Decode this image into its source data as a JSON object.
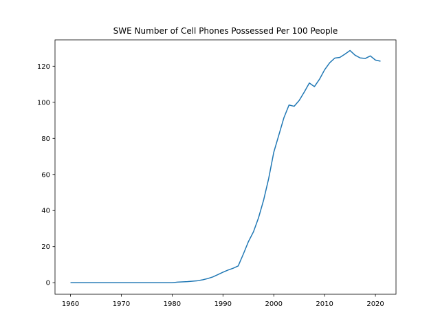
{
  "chart_data": {
    "type": "line",
    "title": "SWE Number of Cell Phones Possessed Per 100 People",
    "xlabel": "",
    "ylabel": "",
    "xlim": [
      1956.95,
      2024.05
    ],
    "ylim": [
      -6.4,
      134.6
    ],
    "xticks": [
      1960,
      1970,
      1980,
      1990,
      2000,
      2010,
      2020
    ],
    "yticks": [
      0,
      20,
      40,
      60,
      80,
      100,
      120
    ],
    "grid": false,
    "line_color": "#1f77b4",
    "x": [
      1960,
      1961,
      1962,
      1963,
      1964,
      1965,
      1966,
      1967,
      1968,
      1969,
      1970,
      1971,
      1972,
      1973,
      1974,
      1975,
      1976,
      1977,
      1978,
      1979,
      1980,
      1981,
      1982,
      1983,
      1984,
      1985,
      1986,
      1987,
      1988,
      1989,
      1990,
      1991,
      1992,
      1993,
      1994,
      1995,
      1996,
      1997,
      1998,
      1999,
      2000,
      2001,
      2002,
      2003,
      2004,
      2005,
      2006,
      2007,
      2008,
      2009,
      2010,
      2011,
      2012,
      2013,
      2014,
      2015,
      2016,
      2017,
      2018,
      2019,
      2020,
      2021
    ],
    "y": [
      0,
      0,
      0,
      0,
      0,
      0,
      0,
      0,
      0,
      0,
      0,
      0,
      0,
      0,
      0,
      0,
      0,
      0,
      0,
      0,
      0,
      0.3,
      0.45,
      0.6,
      0.85,
      1.1,
      1.6,
      2.3,
      3.2,
      4.5,
      5.8,
      7.0,
      8.0,
      9.3,
      15.8,
      22.7,
      28.2,
      36.0,
      45.8,
      57.8,
      72.3,
      81.9,
      91.5,
      98.5,
      97.8,
      101.0,
      105.7,
      110.7,
      108.7,
      112.8,
      118.0,
      121.9,
      124.5,
      124.9,
      126.7,
      128.7,
      126.1,
      124.6,
      124.3,
      125.7,
      123.4,
      122.8
    ]
  }
}
